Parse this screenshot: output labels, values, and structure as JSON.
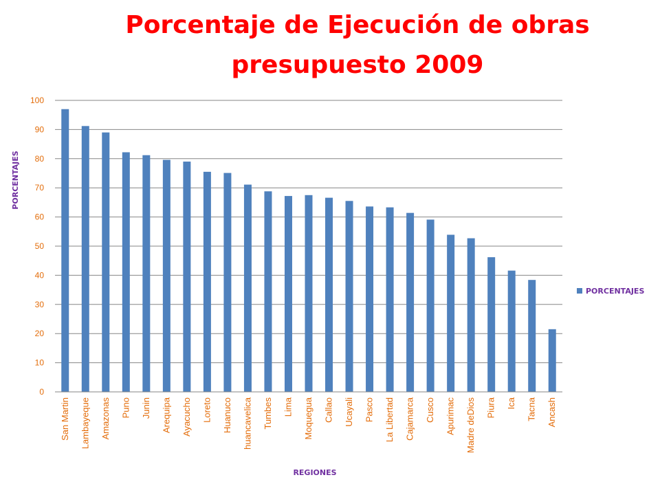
{
  "chart_data": {
    "type": "bar",
    "title_line1": "Porcentaje de Ejecución de obras",
    "title_line2": "presupuesto 2009",
    "xlabel": "REGIONES",
    "ylabel": "PORCENTAJES",
    "ylim": [
      0,
      100
    ],
    "yticks": [
      0,
      10,
      20,
      30,
      40,
      50,
      60,
      70,
      80,
      90,
      100
    ],
    "grid": true,
    "legend_position": "right",
    "bar_color": "#4f81bd",
    "categories": [
      "San Martin",
      "Lambayeque",
      "Amazonas",
      "Puno",
      "Junin",
      "Arequipa",
      "Ayacucho",
      "Loreto",
      "Huanuco",
      "huancavelica",
      "Tumbes",
      "Lima",
      "Moquegua",
      "Callao",
      "Ucayali",
      "Pasco",
      "La Libertad",
      "Cajamarca",
      "Cusco",
      "Apurimac",
      "Madre deDios",
      "Piura",
      "Ica",
      "Tacna",
      "Ancash"
    ],
    "series": [
      {
        "name": "PORCENTAJES",
        "values": [
          97,
          91.2,
          89,
          82.2,
          81.2,
          79.6,
          79,
          75.5,
          75.1,
          71.1,
          68.8,
          67.2,
          67.5,
          66.6,
          65.5,
          63.6,
          63.3,
          61.4,
          59.1,
          53.9,
          52.7,
          46.2,
          41.6,
          38.4,
          21.5
        ]
      }
    ]
  }
}
